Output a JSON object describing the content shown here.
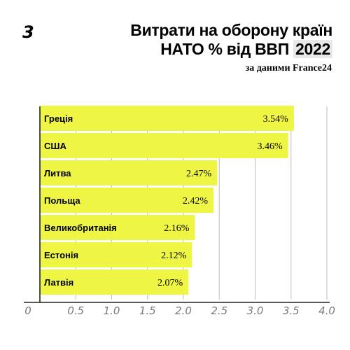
{
  "header": {
    "logo": "3",
    "title_line1": "Витрати на оборону країн",
    "title_line2_text": "НАТО % від ВВП",
    "title_year": "2022",
    "source": "за даними France24"
  },
  "colors": {
    "bar": "#eef542",
    "grid": "#bdbdbd",
    "axis": "#222222"
  },
  "chart_data": {
    "type": "bar",
    "orientation": "horizontal",
    "title": "Витрати на оборону країн НАТО % від ВВП 2022",
    "categories": [
      "Греція",
      "США",
      "Литва",
      "Польща",
      "Великобританія",
      "Естонія",
      "Латвія"
    ],
    "values": [
      3.54,
      3.46,
      2.47,
      2.42,
      2.16,
      2.12,
      2.07
    ],
    "value_labels": [
      "3.54%",
      "3.46%",
      "2.47%",
      "2.42%",
      "2.16%",
      "2.12%",
      "2.07%"
    ],
    "xlim": [
      0,
      4.0
    ],
    "xticks": [
      0,
      0.5,
      1.0,
      1.5,
      2.0,
      2.5,
      3.0,
      3.5,
      4.0
    ],
    "xtick_labels": [
      "0",
      "0.5",
      "1.0",
      "1.5",
      "2.0",
      "2.5",
      "3.0",
      "3.5",
      "4.0"
    ],
    "grid": true
  }
}
